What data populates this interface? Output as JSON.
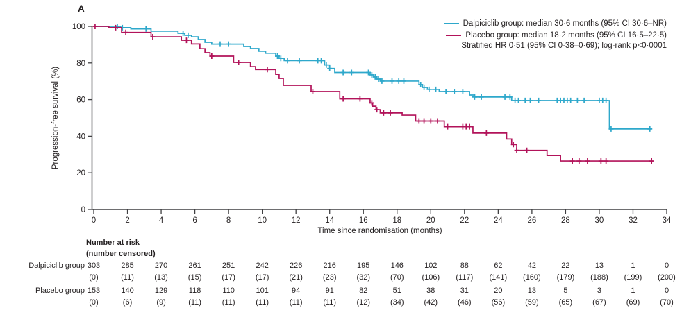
{
  "panel_label": "A",
  "colors": {
    "dalpiciclib": "#2EA8CB",
    "placebo": "#B2135A",
    "axis": "#3F3F41",
    "text": "#231F20"
  },
  "legend": {
    "entries": [
      {
        "label": "Dalpiciclib group: median 30·6 months (95% CI 30·6–NR)",
        "color_key": "dalpiciclib"
      },
      {
        "label": "Placebo group: median 18·2 months (95% CI 16·5–22·5)",
        "color_key": "placebo"
      }
    ],
    "note": "Stratified HR 0·51 (95% CI 0·38–0·69); log-rank p<0·0001"
  },
  "chart_data": {
    "type": "line",
    "subtype": "kaplan-meier-step",
    "xlabel": "Time since randomisation (months)",
    "ylabel": "Progression-free survival (%)",
    "xlim": [
      0,
      34
    ],
    "ylim": [
      0,
      100
    ],
    "xticks": [
      0,
      2,
      4,
      6,
      8,
      10,
      12,
      14,
      16,
      18,
      20,
      22,
      24,
      26,
      28,
      30,
      32,
      34
    ],
    "yticks": [
      0,
      20,
      40,
      60,
      80,
      100
    ],
    "grid": false,
    "legend_position": "top-right",
    "series": [
      {
        "name": "Dalpiciclib group",
        "color_key": "dalpiciclib",
        "median_months": "30·6",
        "end_t": 33.1,
        "steps": [
          [
            0,
            100
          ],
          [
            1.6,
            99.3
          ],
          [
            2.2,
            98.6
          ],
          [
            3.4,
            97.4
          ],
          [
            5.0,
            96.2
          ],
          [
            5.4,
            95.1
          ],
          [
            5.8,
            94.3
          ],
          [
            6.2,
            92.8
          ],
          [
            6.6,
            91.3
          ],
          [
            7.0,
            90.3
          ],
          [
            8.9,
            89.0
          ],
          [
            9.3,
            87.9
          ],
          [
            9.8,
            86.4
          ],
          [
            10.2,
            85.3
          ],
          [
            10.8,
            83.7
          ],
          [
            11.0,
            82.5
          ],
          [
            11.3,
            81.3
          ],
          [
            13.7,
            78.9
          ],
          [
            14.0,
            77.0
          ],
          [
            14.3,
            74.8
          ],
          [
            16.4,
            73.5
          ],
          [
            16.6,
            72.4
          ],
          [
            16.8,
            71.2
          ],
          [
            17.0,
            70.1
          ],
          [
            19.3,
            68.2
          ],
          [
            19.5,
            66.7
          ],
          [
            19.8,
            65.6
          ],
          [
            20.5,
            64.4
          ],
          [
            22.3,
            62.5
          ],
          [
            22.6,
            61.4
          ],
          [
            24.8,
            59.5
          ],
          [
            30.6,
            44.0
          ]
        ],
        "censor_times": [
          1.4,
          1.7,
          3.1,
          5.3,
          5.6,
          7.5,
          8.0,
          10.9,
          11.1,
          11.5,
          12.2,
          13.3,
          13.5,
          13.8,
          14.0,
          14.8,
          15.3,
          16.3,
          16.5,
          16.7,
          16.9,
          17.1,
          17.7,
          18.1,
          18.4,
          19.4,
          19.6,
          19.9,
          20.3,
          20.9,
          21.4,
          21.9,
          22.6,
          23.0,
          24.4,
          24.7,
          25.0,
          25.2,
          25.6,
          25.9,
          26.4,
          27.5,
          27.7,
          27.9,
          28.1,
          28.3,
          28.7,
          29.1,
          30.0,
          30.2,
          30.4,
          30.7,
          33.0
        ]
      },
      {
        "name": "Placebo group",
        "color_key": "placebo",
        "median_months": "18·2",
        "end_t": 33.2,
        "steps": [
          [
            0,
            100
          ],
          [
            0.9,
            99.3
          ],
          [
            1.65,
            96.7
          ],
          [
            3.4,
            94.3
          ],
          [
            5.2,
            92.4
          ],
          [
            5.8,
            90.4
          ],
          [
            6.3,
            87.8
          ],
          [
            6.6,
            85.6
          ],
          [
            6.9,
            83.7
          ],
          [
            8.3,
            80.3
          ],
          [
            9.3,
            78.0
          ],
          [
            9.6,
            76.4
          ],
          [
            10.8,
            73.8
          ],
          [
            11.0,
            71.6
          ],
          [
            11.25,
            67.8
          ],
          [
            12.9,
            64.4
          ],
          [
            14.6,
            60.4
          ],
          [
            16.4,
            58.2
          ],
          [
            16.55,
            56.4
          ],
          [
            16.75,
            54.5
          ],
          [
            17.0,
            52.7
          ],
          [
            18.3,
            51.5
          ],
          [
            19.1,
            48.3
          ],
          [
            20.8,
            45.2
          ],
          [
            22.5,
            41.7
          ],
          [
            24.5,
            38.5
          ],
          [
            24.8,
            35.5
          ],
          [
            25.1,
            32.3
          ],
          [
            26.9,
            29.5
          ],
          [
            27.7,
            26.5
          ]
        ],
        "censor_times": [
          0.08,
          1.3,
          1.9,
          3.5,
          5.5,
          7.0,
          8.6,
          10.3,
          13.0,
          14.8,
          15.8,
          16.5,
          16.8,
          17.2,
          17.6,
          19.3,
          19.6,
          20.0,
          20.4,
          21.0,
          21.9,
          22.1,
          22.3,
          23.3,
          24.9,
          25.1,
          25.7,
          28.4,
          28.8,
          29.3,
          30.1,
          30.4,
          33.1
        ]
      }
    ]
  },
  "risk_table": {
    "header_line1": "Number at risk",
    "header_line2": "(number censored)",
    "time_points": [
      0,
      2,
      4,
      6,
      8,
      10,
      12,
      14,
      16,
      18,
      20,
      22,
      24,
      26,
      28,
      30,
      32,
      34
    ],
    "rows": [
      {
        "label": "Dalpiciclib group",
        "at_risk": [
          303,
          285,
          270,
          261,
          251,
          242,
          226,
          216,
          195,
          146,
          102,
          88,
          62,
          42,
          22,
          13,
          1,
          0
        ],
        "censored": [
          0,
          11,
          13,
          15,
          17,
          17,
          21,
          23,
          32,
          70,
          106,
          117,
          141,
          160,
          179,
          188,
          199,
          200
        ]
      },
      {
        "label": "Placebo group",
        "at_risk": [
          153,
          140,
          129,
          118,
          110,
          101,
          94,
          91,
          82,
          51,
          38,
          31,
          20,
          13,
          5,
          3,
          1,
          0
        ],
        "censored": [
          0,
          6,
          9,
          11,
          11,
          11,
          11,
          11,
          12,
          34,
          42,
          46,
          56,
          59,
          65,
          67,
          69,
          70
        ]
      }
    ]
  }
}
